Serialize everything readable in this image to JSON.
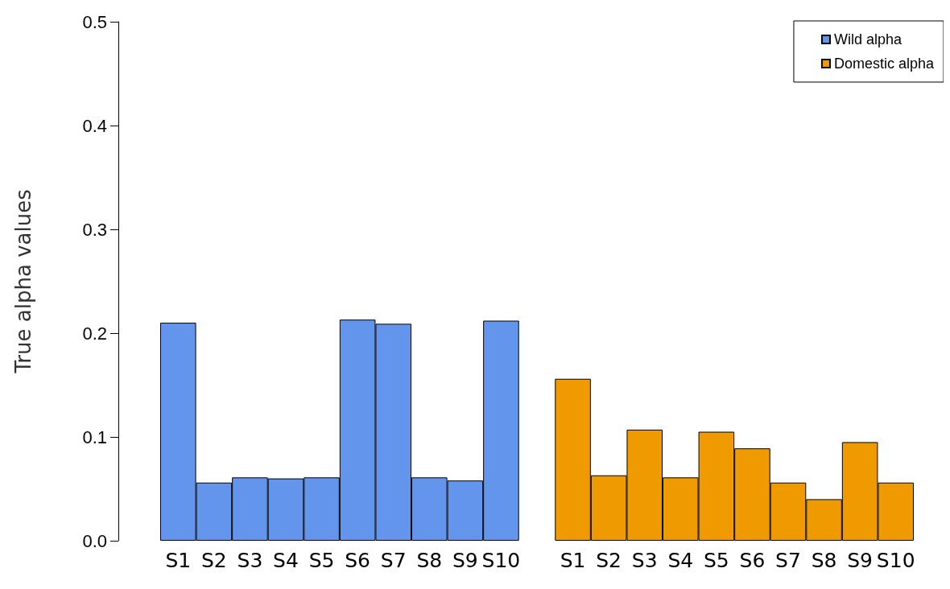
{
  "chart_data": {
    "type": "bar",
    "ylabel": "True alpha values",
    "categories": [
      "S1",
      "S2",
      "S3",
      "S4",
      "S5",
      "S6",
      "S7",
      "S8",
      "S9",
      "S10",
      null,
      "S1",
      "S2",
      "S3",
      "S4",
      "S5",
      "S6",
      "S7",
      "S8",
      "S9",
      "S10"
    ],
    "series": [
      {
        "name": "Wild alpha",
        "color": "#6495ed",
        "values": [
          0.21,
          0.056,
          0.061,
          0.06,
          0.061,
          0.213,
          0.209,
          0.061,
          0.058,
          0.212,
          null,
          null,
          null,
          null,
          null,
          null,
          null,
          null,
          null,
          null,
          null
        ]
      },
      {
        "name": "Domestic alpha",
        "color": "#ee9a00",
        "values": [
          null,
          null,
          null,
          null,
          null,
          null,
          null,
          null,
          null,
          null,
          null,
          0.156,
          0.063,
          0.107,
          0.061,
          0.105,
          0.089,
          0.056,
          0.04,
          0.095,
          0.056
        ]
      }
    ],
    "ylim": [
      0,
      0.5
    ],
    "yticks": [
      {
        "value": 0,
        "label": "0.0"
      },
      0.1,
      0.2,
      0.3,
      0.4,
      0.5
    ],
    "grid": false,
    "legend": "top right"
  }
}
